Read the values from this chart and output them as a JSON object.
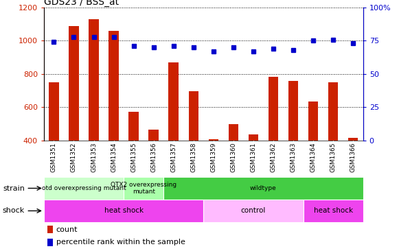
{
  "title": "GDS23 / BSS_at",
  "samples": [
    "GSM1351",
    "GSM1352",
    "GSM1353",
    "GSM1354",
    "GSM1355",
    "GSM1356",
    "GSM1357",
    "GSM1358",
    "GSM1359",
    "GSM1360",
    "GSM1361",
    "GSM1362",
    "GSM1363",
    "GSM1364",
    "GSM1365",
    "GSM1366"
  ],
  "counts": [
    750,
    1090,
    1130,
    1060,
    575,
    465,
    870,
    695,
    410,
    500,
    435,
    785,
    760,
    635,
    750,
    415
  ],
  "percentiles": [
    74,
    78,
    78,
    78,
    71,
    70,
    71,
    70,
    67,
    70,
    67,
    69,
    68,
    75,
    76,
    73
  ],
  "ylim_left": [
    400,
    1200
  ],
  "ylim_right": [
    0,
    100
  ],
  "yticks_left": [
    400,
    600,
    800,
    1000,
    1200
  ],
  "yticks_right": [
    0,
    25,
    50,
    75,
    100
  ],
  "bar_color": "#cc2200",
  "dot_color": "#0000cc",
  "strain_groups": [
    {
      "label": "otd overexpressing mutant",
      "start": 0,
      "end": 4,
      "color": "#ccffcc"
    },
    {
      "label": "OTX2 overexpressing\nmutant",
      "start": 4,
      "end": 6,
      "color": "#aaffaa"
    },
    {
      "label": "wildtype",
      "start": 6,
      "end": 16,
      "color": "#44cc44"
    }
  ],
  "shock_groups": [
    {
      "label": "heat shock",
      "start": 0,
      "end": 8,
      "color": "#ee44ee"
    },
    {
      "label": "control",
      "start": 8,
      "end": 13,
      "color": "#ffbbff"
    },
    {
      "label": "heat shock",
      "start": 13,
      "end": 16,
      "color": "#ee44ee"
    }
  ],
  "xtick_bg": "#d8d8d8",
  "legend_count_color": "#cc2200",
  "legend_dot_color": "#0000cc",
  "plot_bg": "#ffffff",
  "fig_bg": "#ffffff"
}
